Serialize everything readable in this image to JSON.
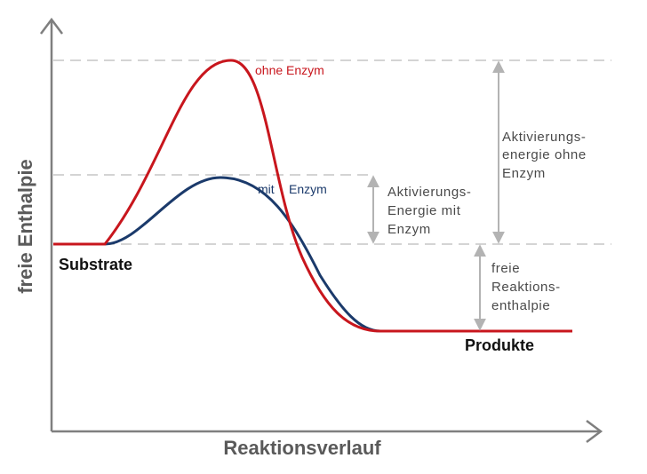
{
  "axes": {
    "y_title": "freie Enthalpie",
    "x_title": "Reaktionsverlauf"
  },
  "states": {
    "substrate": "Substrate",
    "product": "Produkte"
  },
  "curves": {
    "without_enzyme": {
      "label": "ohne Enzym",
      "color": "#c8161d"
    },
    "with_enzyme": {
      "label_part1": "mit",
      "label_part2": "Enzym",
      "color": "#1b3a6b"
    }
  },
  "annotations": {
    "activation_without": [
      "Aktivierungs-",
      "energie ohne",
      "Enzym"
    ],
    "activation_with": [
      "Aktivierungs-",
      "Energie mit",
      "Enzym"
    ],
    "reaction_enthalpy": [
      "freie",
      "Reaktions-",
      "enthalpie"
    ]
  },
  "colors": {
    "axis": "#7f7f7f",
    "dashed_guides": "#d4d4d4",
    "arrows": "#b3b3b3",
    "text_gray": "#5a5a5a"
  }
}
